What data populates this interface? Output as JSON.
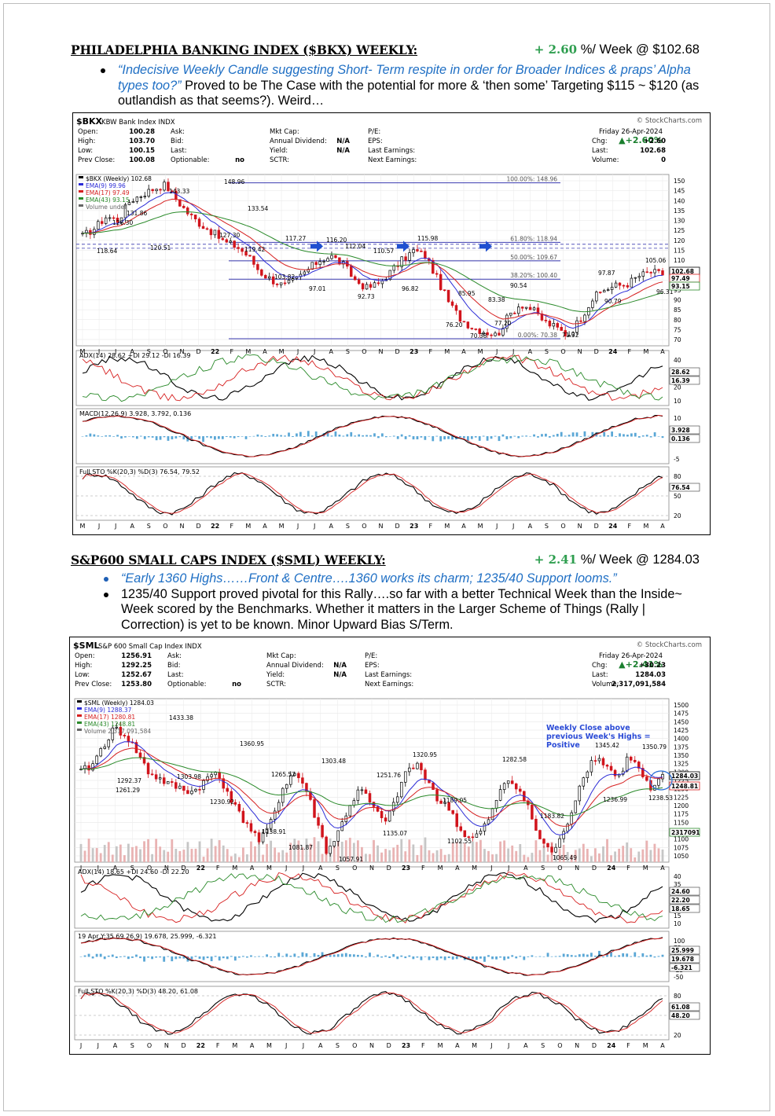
{
  "bkx": {
    "title": "PHILADELPHIA BANKING INDEX ($BKX) WEEKLY:",
    "perf_pct": "+ 2.60",
    "perf_rest": " %/ Week @ $102.68",
    "quote": "“Indecisive Weekly Candle suggesting Short- Term respite in order for Broader Indices & praps’ Alpha types too?”",
    "comment": " Proved to be The Case with the potential for more & ‘then some’ Targeting $115 ~ $120 (as outlandish as that seems?). Weird…"
  },
  "sml": {
    "title": "S&P600 SMALL CAPS INDEX ($SML) WEEKLY:",
    "perf_pct": "+ 2.41",
    "perf_rest": " %/ Week @ 1284.03",
    "quote": "“Early 1360 Highs……Front & Centre….1360 works its charm; 1235/40 Support looms.”",
    "comment": "1235/40 Support proved pivotal for this Rally….so far with a better Technical Week than the Inside~ Week scored by the Benchmarks. Whether it matters in the Larger Scheme of Things (Rally | Correction) is yet to be known. Minor Upward Bias S/Term."
  },
  "chart1": {
    "symbol": "$BKX",
    "name": "KBW Bank Index  INDX",
    "source": "© StockCharts.com",
    "date": "Friday   26-Apr-2024",
    "change_pct": "▲+2.60%",
    "info_col1": [
      "Open:",
      "High:",
      "Low:",
      "Prev Close:"
    ],
    "info_val1": [
      "100.28",
      "103.70",
      "100.15",
      "100.08"
    ],
    "info_col2": [
      "Ask:",
      "Bid:",
      "Last:",
      "Optionable:"
    ],
    "info_val2": [
      "",
      "",
      "",
      "no"
    ],
    "info_col3": [
      "Mkt Cap:",
      "Annual Dividend:",
      "Yield:",
      "SCTR:"
    ],
    "info_val3": [
      "",
      "N/A",
      "N/A",
      ""
    ],
    "info_col4": [
      "P/E:",
      "EPS:",
      "Last Earnings:",
      "Next Earnings:"
    ],
    "info_col5": [
      "Chg:",
      "Last:",
      "Volume:"
    ],
    "info_val5": [
      "+2.60",
      "102.68",
      "0"
    ],
    "legend": [
      "$BKX (Weekly) 102.68",
      "EMA(9) 99.96",
      "EMA(17) 97.49",
      "EMA(43) 93.15",
      "Volume undef"
    ],
    "price_ticks": [
      "150",
      "145",
      "140",
      "135",
      "130",
      "125",
      "120",
      "115",
      "110",
      "105",
      "100",
      "95",
      "90",
      "85",
      "80",
      "75",
      "70"
    ],
    "annotations": [
      "143.33",
      "148.96",
      "131.86",
      "133.54",
      "126.30",
      "127.30",
      "118.64",
      "120.51",
      "119.42",
      "117.27",
      "116.20",
      "112.04",
      "110.57",
      "115.98",
      "103.82",
      "97.01",
      "92.73",
      "96.82",
      "85.95",
      "90.54",
      "83.38",
      "76.20",
      "70.38",
      "77.20",
      "71.32",
      "97.87",
      "90.79",
      "105.06",
      "96.31"
    ],
    "fib_labels": [
      "100.00%: 148.96",
      "61.80%: 118.94",
      "50.00%: 109.67",
      "38.20%: 100.40",
      "0.00%: 70.38"
    ],
    "right_labels": [
      "102.68",
      "97.49",
      "93.15"
    ],
    "months": [
      "M",
      "J",
      "J",
      "A",
      "S",
      "O",
      "N",
      "D",
      "22",
      "F",
      "M",
      "A",
      "M",
      "J",
      "J",
      "A",
      "S",
      "O",
      "N",
      "D",
      "23",
      "F",
      "M",
      "A",
      "M",
      "J",
      "J",
      "A",
      "S",
      "O",
      "N",
      "D",
      "24",
      "F",
      "M",
      "A"
    ],
    "adx_label": "ADX(14) 28.62 +DI 29.12 -DI 16.39",
    "adx_ticks": [
      "40",
      "30",
      "20",
      "10"
    ],
    "adx_right": [
      "28.62",
      "16.39"
    ],
    "macd_label": "MACD(12,26,9) 3.928, 3.792, 0.136",
    "macd_ticks": [
      "10",
      "5",
      "-5"
    ],
    "macd_right": [
      "3.928",
      "0.136"
    ],
    "sto_label": "Full STO %K(20,3) %D(3) 76.54, 79.52",
    "sto_ticks": [
      "80",
      "50",
      "20"
    ],
    "sto_right": [
      "76.54"
    ]
  },
  "chart2": {
    "symbol": "$SML",
    "name": "S&P 600 Small Cap Index  INDX",
    "source": "© StockCharts.com",
    "date": "Friday   26-Apr-2024",
    "change_pct": "▲+2.41%",
    "info_col1": [
      "Open:",
      "High:",
      "Low:",
      "Prev Close:"
    ],
    "info_val1": [
      "1256.91",
      "1292.25",
      "1252.67",
      "1253.80"
    ],
    "info_col2": [
      "Ask:",
      "Bid:",
      "Last:",
      "Optionable:"
    ],
    "info_val2": [
      "",
      "",
      "",
      "no"
    ],
    "info_col3": [
      "Mkt Cap:",
      "Annual Dividend:",
      "Yield:",
      "SCTR:"
    ],
    "info_val3": [
      "",
      "N/A",
      "N/A",
      ""
    ],
    "info_col4": [
      "P/E:",
      "EPS:",
      "Last Earnings:",
      "Next Earnings:"
    ],
    "info_col5": [
      "Chg:",
      "Last:",
      "Volume:"
    ],
    "info_val5": [
      "+30.23",
      "1284.03",
      "2,317,091,584"
    ],
    "legend": [
      "$SML (Weekly) 1284.03",
      "EMA(9) 1288.37",
      "EMA(17) 1280.81",
      "EMA(43) 1248.81",
      "Volume 2,317,091,584"
    ],
    "price_ticks": [
      "1500",
      "1475",
      "1450",
      "1425",
      "1400",
      "1375",
      "1350",
      "1325",
      "1300",
      "1275",
      "1250",
      "1225",
      "1200",
      "1175",
      "1150",
      "1125",
      "1100",
      "1075",
      "1050"
    ],
    "annotations": [
      "1433.38",
      "1360.95",
      "1292.37",
      "1261.29",
      "1303.98",
      "1230.92",
      "1265.52",
      "1303.48",
      "1138.91",
      "1081.87",
      "1057.91",
      "1251.76",
      "1135.07",
      "1320.95",
      "1189.05",
      "1102.55",
      "1282.58",
      "1183.82",
      "1065.49",
      "1345.42",
      "1236.99",
      "1350.79",
      "1238.53"
    ],
    "callout": [
      "Weekly Close above",
      "previous Week's Highs =",
      "Positive"
    ],
    "right_labels": [
      "1284.03",
      "1248.81",
      "2317091"
    ],
    "months": [
      "J",
      "J",
      "A",
      "S",
      "O",
      "N",
      "D",
      "22",
      "F",
      "M",
      "A",
      "M",
      "J",
      "J",
      "A",
      "S",
      "O",
      "N",
      "D",
      "23",
      "F",
      "M",
      "A",
      "M",
      "J",
      "J",
      "A",
      "S",
      "O",
      "N",
      "D",
      "24",
      "F",
      "M",
      "A"
    ],
    "adx_label": "ADX(14) 18.65 +DI 24.60 -DI 22.20",
    "adx_ticks": [
      "40",
      "35",
      "30",
      "25",
      "20",
      "15",
      "10"
    ],
    "adx_right": [
      "24.60",
      "22.20",
      "18.65"
    ],
    "macd_label": "19 Apr Y:35.69 26,9) 19.678, 25.999, -6.321",
    "macd_ticks": [
      "100",
      "75",
      "50",
      "25",
      "-25",
      "-50"
    ],
    "macd_right": [
      "25.999",
      "19.678",
      "-6.321"
    ],
    "sto_label": "Full STO %K(20,3) %D(3) 48.20, 61.08",
    "sto_ticks": [
      "80",
      "50",
      "20"
    ],
    "sto_right": [
      "61.08",
      "48.20"
    ]
  }
}
